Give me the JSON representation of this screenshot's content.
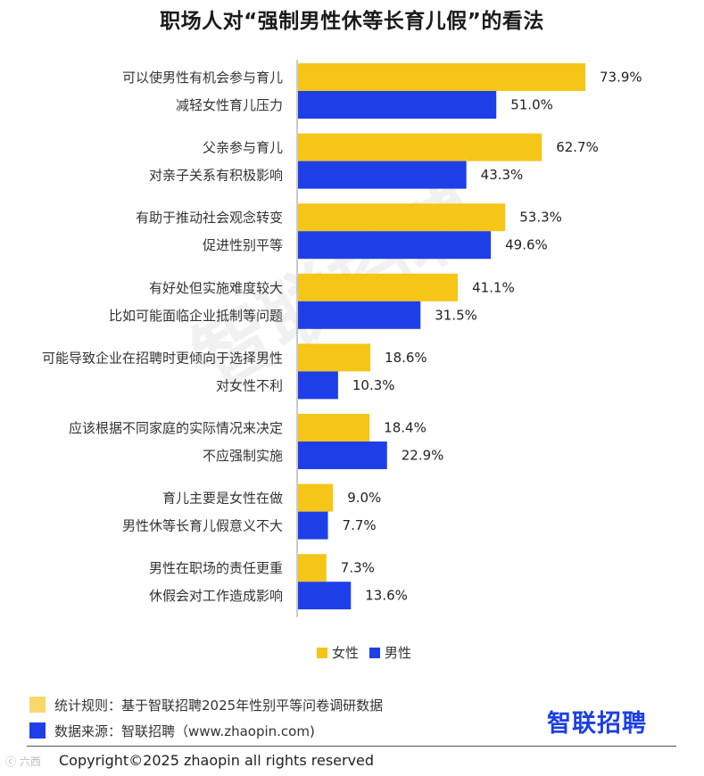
{
  "title": "职场人对“强制男性休等长育儿假”的看法",
  "watermark": "智联招聘",
  "colors": {
    "female": "#F5C518",
    "male": "#1E3FE8"
  },
  "chart_data": {
    "type": "bar",
    "orientation": "horizontal",
    "categories": [
      [
        "可以使男性有机会参与育儿",
        "减轻女性育儿压力"
      ],
      [
        "父亲参与育儿",
        "对亲子关系有积极影响"
      ],
      [
        "有助于推动社会观念转变",
        "促进性别平等"
      ],
      [
        "有好处但实施难度较大",
        "比如可能面临企业抵制等问题"
      ],
      [
        "可能导致企业在招聘时更倾向于选择男性",
        "对女性不利"
      ],
      [
        "应该根据不同家庭的实际情况来决定",
        "不应强制实施"
      ],
      [
        "育儿主要是女性在做",
        "男性休等长育儿假意义不大"
      ],
      [
        "男性在职场的责任更重",
        "休假会对工作造成影响"
      ]
    ],
    "series": [
      {
        "name": "女性",
        "values": [
          73.9,
          62.7,
          53.3,
          41.1,
          18.6,
          18.4,
          9.0,
          7.3
        ],
        "labels": [
          "73.9%",
          "62.7%",
          "53.3%",
          "41.1%",
          "18.6%",
          "18.4%",
          "9.0%",
          "7.3%"
        ]
      },
      {
        "name": "男性",
        "values": [
          51.0,
          43.3,
          49.6,
          31.5,
          10.3,
          22.9,
          7.7,
          13.6
        ],
        "labels": [
          "51.0%",
          "43.3%",
          "49.6%",
          "31.5%",
          "10.3%",
          "22.9%",
          "7.7%",
          "13.6%"
        ]
      }
    ],
    "unit": "%",
    "xlim": [
      0,
      80
    ],
    "grid": false,
    "legend_position": "bottom"
  },
  "legend": {
    "female": "女性",
    "male": "男性"
  },
  "footer": {
    "note1": "统计规则：基于智联招聘2025年性别平等问卷调研数据",
    "note2": "数据来源：智联招聘（www.zhaopin.com)",
    "logo": "智联招聘",
    "copyright": "Copyright©2025 zhaopin all rights reserved",
    "corner_mark": "ⓒ 六西"
  }
}
